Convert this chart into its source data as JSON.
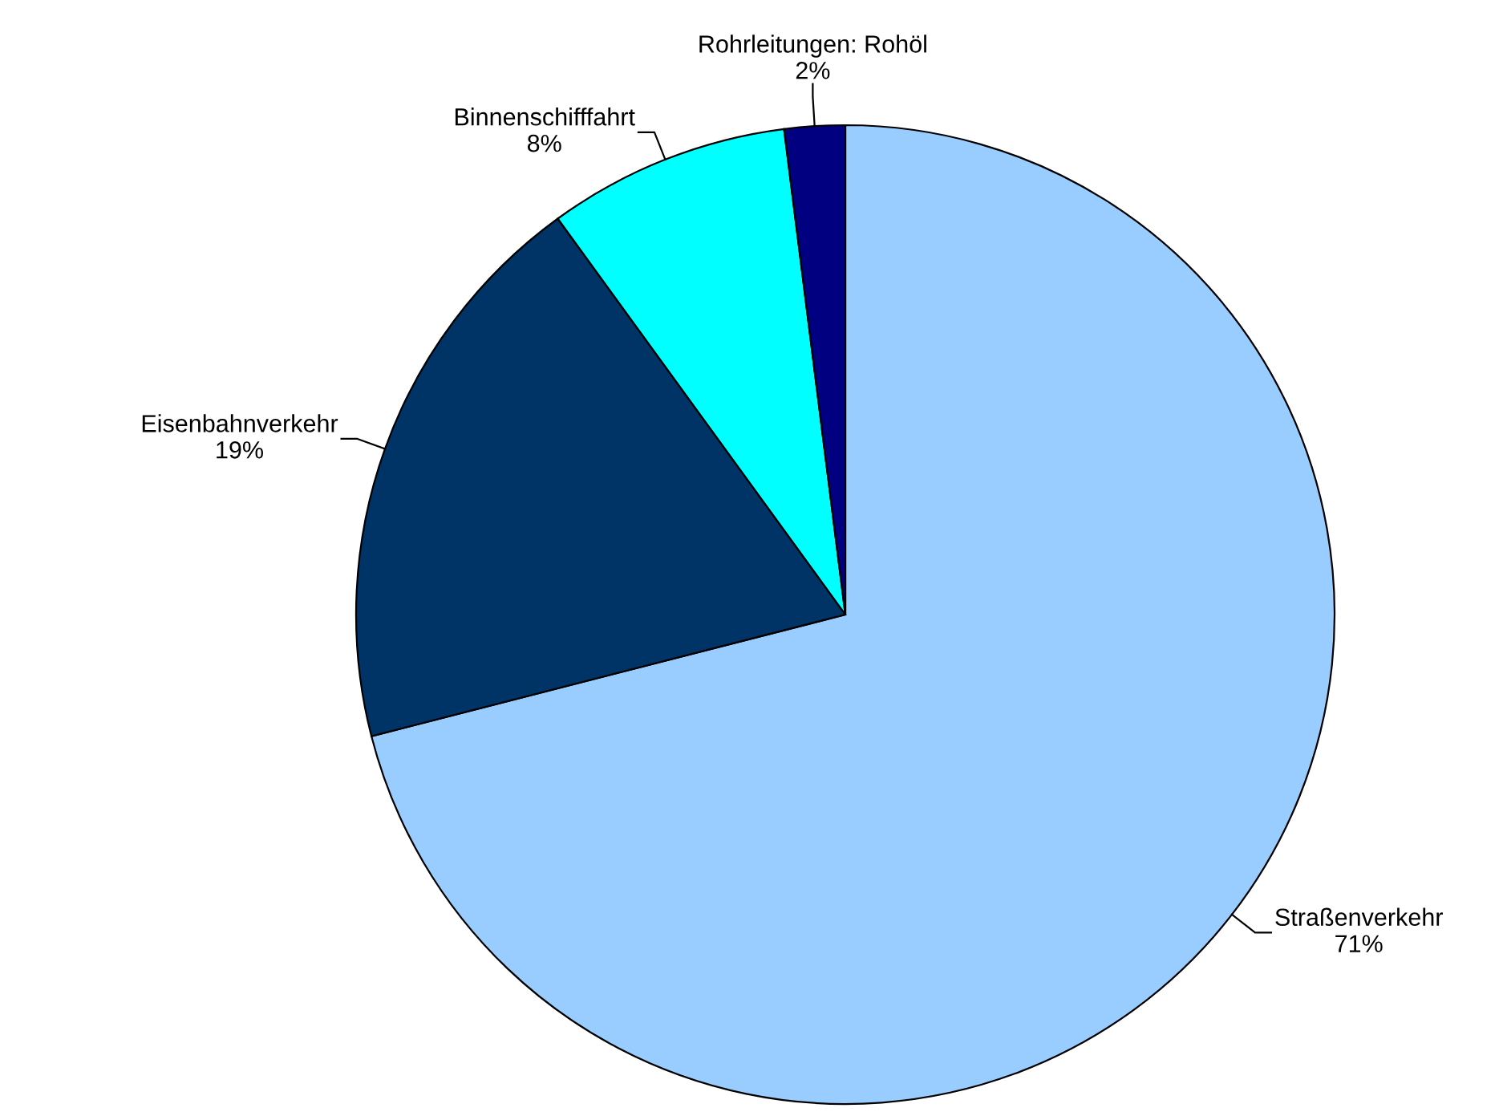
{
  "chart_data": {
    "type": "pie",
    "categories": [
      "Straßenverkehr",
      "Eisenbahnverkehr",
      "Binnenschifffahrt",
      "Rohrleitungen: Rohöl"
    ],
    "values": [
      71,
      19,
      8,
      2
    ],
    "value_labels": [
      "71%",
      "19%",
      "8%",
      "2%"
    ],
    "colors": [
      "#99ccff",
      "#003366",
      "#00ffff",
      "#000080"
    ],
    "legend": false
  }
}
